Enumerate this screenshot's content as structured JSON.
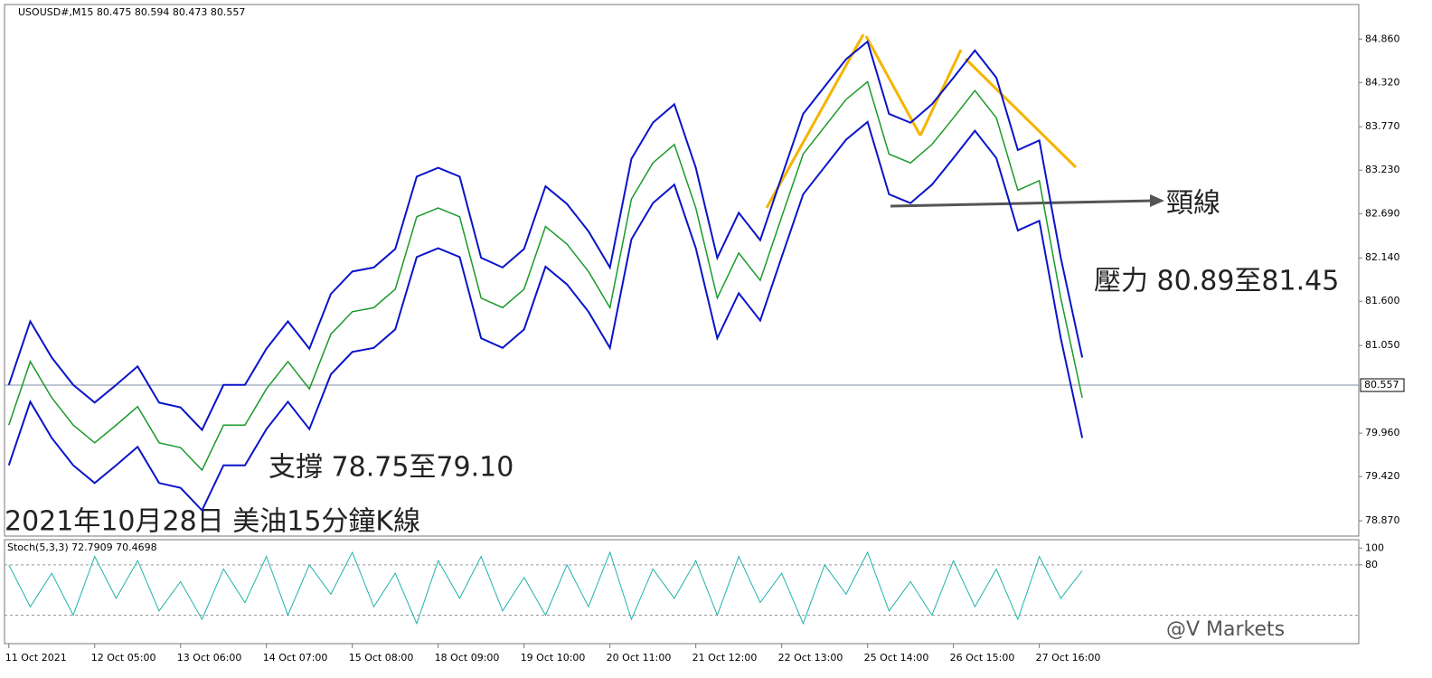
{
  "chart_data": [
    {
      "type": "line",
      "title": "USOUSD#,M15  80.475 80.594 80.473 80.557",
      "annotations": [
        "頸線",
        "壓力 80.89至81.45",
        "支撐 78.75至79.10",
        "2021年10月28日 美油15分鐘K線"
      ],
      "watermark": "@V Markets",
      "last": 80.557,
      "xlim": [
        -0.05,
        15.72
      ],
      "xticks": [
        {
          "value": 0,
          "label": "11 Oct 2021"
        },
        {
          "value": 1,
          "label": "12 Oct 05:00"
        },
        {
          "value": 2,
          "label": "13 Oct 06:00"
        },
        {
          "value": 3,
          "label": "14 Oct 07:00"
        },
        {
          "value": 4,
          "label": "15 Oct 08:00"
        },
        {
          "value": 5,
          "label": "18 Oct 09:00"
        },
        {
          "value": 6,
          "label": "19 Oct 10:00"
        },
        {
          "value": 7,
          "label": "20 Oct 11:00"
        },
        {
          "value": 8,
          "label": "21 Oct 12:00"
        },
        {
          "value": 9,
          "label": "22 Oct 13:00"
        },
        {
          "value": 10,
          "label": "25 Oct 14:00"
        },
        {
          "value": 11,
          "label": "26 Oct 15:00"
        },
        {
          "value": 12,
          "label": "27 Oct 16:00"
        }
      ],
      "ylim": [
        78.68,
        85.29
      ],
      "yticks": [
        {
          "value": 84.86,
          "label": "84.860"
        },
        {
          "value": 84.32,
          "label": "84.320"
        },
        {
          "value": 83.77,
          "label": "83.770"
        },
        {
          "value": 83.23,
          "label": "83.230"
        },
        {
          "value": 82.69,
          "label": "82.690"
        },
        {
          "value": 82.14,
          "label": "82.140"
        },
        {
          "value": 81.6,
          "label": "81.600"
        },
        {
          "value": 81.05,
          "label": "81.050"
        },
        {
          "value": 79.96,
          "label": "79.960"
        },
        {
          "value": 79.42,
          "label": "79.420"
        },
        {
          "value": 78.87,
          "label": "78.870"
        }
      ],
      "x": [
        0,
        0.25,
        0.5,
        0.75,
        1,
        1.25,
        1.5,
        1.75,
        2,
        2.25,
        2.5,
        2.75,
        3,
        3.25,
        3.5,
        3.75,
        4,
        4.25,
        4.5,
        4.75,
        5,
        5.25,
        5.5,
        5.75,
        6,
        6.25,
        6.5,
        6.75,
        7,
        7.25,
        7.5,
        7.75,
        8,
        8.25,
        8.5,
        8.75,
        9,
        9.25,
        9.5,
        9.75,
        10,
        10.25,
        10.5,
        10.75,
        11,
        11.25,
        11.5,
        11.75,
        12,
        12.25,
        12.5
      ],
      "series": [
        {
          "color": "#1a9a2a",
          "width": 1.5,
          "values": [
            80.06,
            80.85,
            80.4,
            80.06,
            79.84,
            80.06,
            80.29,
            79.84,
            79.78,
            79.5,
            80.06,
            80.06,
            80.51,
            80.85,
            80.51,
            81.19,
            81.47,
            81.52,
            81.75,
            82.65,
            82.76,
            82.65,
            81.64,
            81.52,
            81.75,
            82.53,
            82.31,
            81.97,
            81.52,
            82.87,
            83.32,
            83.55,
            82.76,
            81.64,
            82.2,
            81.86,
            82.65,
            83.43,
            83.77,
            84.11,
            84.33,
            83.43,
            83.32,
            83.55,
            83.88,
            84.22,
            83.88,
            82.98,
            83.1,
            81.64,
            80.4
          ]
        },
        {
          "color": "#0a14c8",
          "width": 2,
          "values": [
            80.56,
            81.35,
            80.9,
            80.56,
            80.34,
            80.56,
            80.79,
            80.34,
            80.28,
            80.0,
            80.56,
            80.56,
            81.01,
            81.35,
            81.01,
            81.69,
            81.97,
            82.02,
            82.25,
            83.15,
            83.26,
            83.15,
            82.14,
            82.02,
            82.25,
            83.03,
            82.81,
            82.47,
            82.02,
            83.37,
            83.82,
            84.05,
            83.26,
            82.14,
            82.7,
            82.36,
            83.15,
            83.93,
            84.27,
            84.61,
            84.83,
            83.93,
            83.82,
            84.05,
            84.38,
            84.72,
            84.38,
            83.48,
            83.6,
            82.14,
            80.9
          ]
        },
        {
          "color": "#0a14c8",
          "width": 2,
          "values": [
            79.56,
            80.35,
            79.9,
            79.56,
            79.34,
            79.56,
            79.79,
            79.34,
            79.28,
            79.0,
            79.56,
            79.56,
            80.01,
            80.35,
            80.01,
            80.69,
            80.97,
            81.02,
            81.25,
            82.15,
            82.26,
            82.15,
            81.14,
            81.02,
            81.25,
            82.03,
            81.81,
            81.47,
            81.02,
            82.37,
            82.82,
            83.05,
            82.26,
            81.14,
            81.7,
            81.36,
            82.15,
            82.93,
            83.27,
            83.61,
            83.83,
            82.93,
            82.82,
            83.05,
            83.38,
            83.72,
            83.38,
            82.48,
            82.6,
            81.14,
            79.9
          ]
        }
      ]
    },
    {
      "type": "line",
      "title": "Stoch(5,3,3) 72.7909 70.4698",
      "xlim": [
        -0.05,
        15.72
      ],
      "ylim": [
        -14,
        110
      ],
      "yticks": [
        100,
        80
      ],
      "levels": [
        80,
        20
      ],
      "x": [
        0,
        0.25,
        0.5,
        0.75,
        1,
        1.25,
        1.5,
        1.75,
        2,
        2.25,
        2.5,
        2.75,
        3,
        3.25,
        3.5,
        3.75,
        4,
        4.25,
        4.5,
        4.75,
        5,
        5.25,
        5.5,
        5.75,
        6,
        6.25,
        6.5,
        6.75,
        7,
        7.25,
        7.5,
        7.75,
        8,
        8.25,
        8.5,
        8.75,
        9,
        9.25,
        9.5,
        9.75,
        10,
        10.25,
        10.5,
        10.75,
        11,
        11.25,
        11.5,
        11.75,
        12,
        12.25,
        12.5
      ],
      "series": [
        {
          "color": "#20b2aa",
          "width": 1,
          "values": [
            80,
            30,
            70,
            20,
            90,
            40,
            85,
            25,
            60,
            15,
            75,
            35,
            90,
            20,
            80,
            45,
            95,
            30,
            70,
            10,
            85,
            40,
            90,
            25,
            65,
            20,
            80,
            30,
            95,
            15,
            75,
            40,
            85,
            20,
            90,
            35,
            70,
            10,
            80,
            45,
            95,
            25,
            60,
            20,
            85,
            30,
            75,
            15,
            90,
            40,
            73
          ]
        }
      ]
    }
  ]
}
